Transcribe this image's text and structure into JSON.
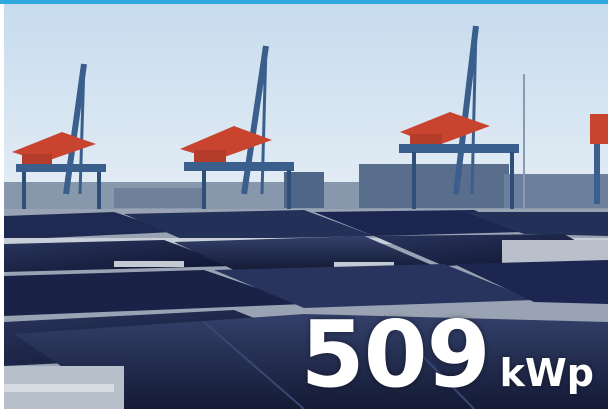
{
  "capacity": {
    "value": "509",
    "unit": "kWp"
  },
  "colors": {
    "accent_rule": "#2fa8e0",
    "sky": "#d7e6f3",
    "panel": "#1f2a4c",
    "crane_blue": "#3a5f8c",
    "crane_red": "#c8442f"
  }
}
